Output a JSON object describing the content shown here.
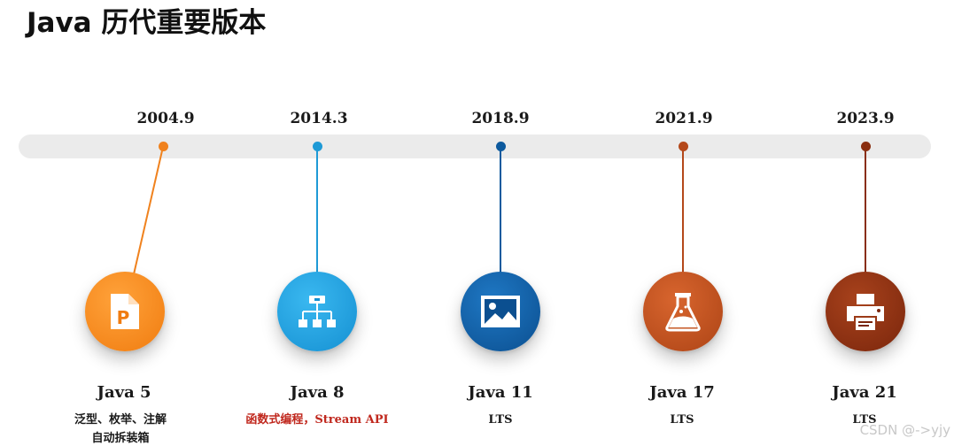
{
  "title": "Java 历代重要版本",
  "watermark": "CSDN @->yjy",
  "milestones": [
    {
      "date": "2004.9",
      "name": "Java 5",
      "desc": "泛型、枚举、注解\n自动拆装箱",
      "color": "#f0821e",
      "icon": "document-p-icon"
    },
    {
      "date": "2014.3",
      "name": "Java 8",
      "desc": "函数式编程，Stream API",
      "color": "#1e9ad6",
      "icon": "hierarchy-icon"
    },
    {
      "date": "2018.9",
      "name": "Java 11",
      "desc": "LTS",
      "color": "#0d5a9e",
      "icon": "image-icon"
    },
    {
      "date": "2021.9",
      "name": "Java 17",
      "desc": "LTS",
      "color": "#b4481a",
      "icon": "flask-icon"
    },
    {
      "date": "2023.9",
      "name": "Java 21",
      "desc": "LTS",
      "color": "#8a2e10",
      "icon": "printer-icon"
    }
  ]
}
